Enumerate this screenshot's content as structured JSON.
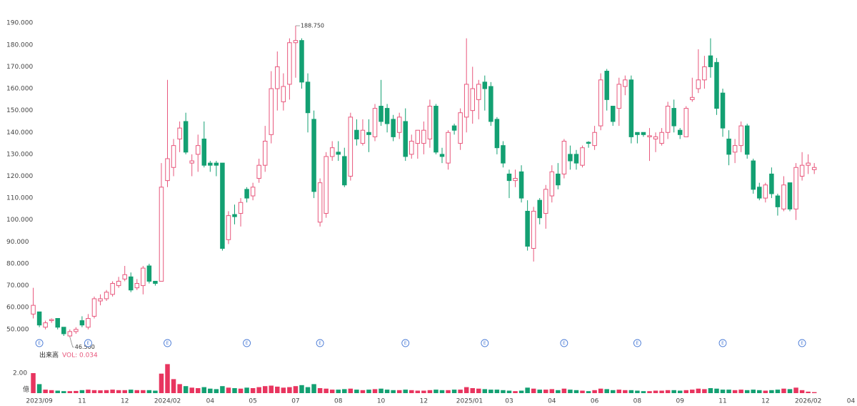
{
  "chart_data": {
    "type": "candlestick",
    "up_color": "#e8577c",
    "down_color": "#13a072",
    "xlim": [
      -1,
      135
    ],
    "xticks": [
      {
        "value": 1,
        "label": "2023/09"
      },
      {
        "value": 8,
        "label": "11"
      },
      {
        "value": 15,
        "label": "12"
      },
      {
        "value": 22,
        "label": "2024/02"
      },
      {
        "value": 29,
        "label": "04"
      },
      {
        "value": 36,
        "label": "05"
      },
      {
        "value": 43,
        "label": "07"
      },
      {
        "value": 50,
        "label": "08"
      },
      {
        "value": 57,
        "label": "10"
      },
      {
        "value": 64,
        "label": "12"
      },
      {
        "value": 71.5,
        "label": "2025/01"
      },
      {
        "value": 78,
        "label": "03"
      },
      {
        "value": 85,
        "label": "04"
      },
      {
        "value": 92,
        "label": "06"
      },
      {
        "value": 99,
        "label": "08"
      },
      {
        "value": 106,
        "label": "09"
      },
      {
        "value": 113,
        "label": "11"
      },
      {
        "value": 120,
        "label": "12"
      },
      {
        "value": 127,
        "label": "2026/02"
      },
      {
        "value": 134,
        "label": "04"
      }
    ],
    "ylim": [
      47,
      193
    ],
    "yticks": [
      {
        "value": 50,
        "label": "50.000"
      },
      {
        "value": 60,
        "label": "60.000"
      },
      {
        "value": 70,
        "label": "70.000"
      },
      {
        "value": 80,
        "label": "80.000"
      },
      {
        "value": 90,
        "label": "90.000"
      },
      {
        "value": 100,
        "label": "100.000"
      },
      {
        "value": 110,
        "label": "110.000"
      },
      {
        "value": 120,
        "label": "120.000"
      },
      {
        "value": 130,
        "label": "130.000"
      },
      {
        "value": 140,
        "label": "140.000"
      },
      {
        "value": 150,
        "label": "150.000"
      },
      {
        "value": 160,
        "label": "160.000"
      },
      {
        "value": 170,
        "label": "170.000"
      },
      {
        "value": 180,
        "label": "180.000"
      },
      {
        "value": 190,
        "label": "190.000"
      }
    ],
    "open": [
      57,
      58,
      51,
      54,
      55,
      51,
      47,
      49,
      54,
      51,
      56,
      63,
      64,
      66,
      70,
      73,
      74,
      69,
      70,
      79,
      72,
      72,
      118,
      124,
      137,
      145,
      126,
      130,
      137,
      126,
      126,
      126,
      91,
      102.5,
      103,
      114,
      111,
      119,
      125,
      139,
      160,
      154,
      162,
      181,
      182,
      163,
      146,
      99,
      103,
      129,
      131,
      129,
      120,
      141,
      135,
      140,
      138,
      152,
      151,
      146,
      140,
      145,
      130,
      135,
      135,
      137,
      152,
      130,
      126,
      143,
      135,
      147,
      150,
      155,
      163,
      161,
      146,
      134,
      121,
      118,
      122,
      104,
      87,
      109,
      103,
      111,
      121,
      121,
      130,
      130,
      125,
      135.5,
      134,
      143,
      168,
      152,
      151,
      161,
      164,
      140,
      140,
      138,
      137,
      135,
      140,
      151,
      141,
      138,
      155,
      160,
      164,
      175,
      172,
      158,
      137,
      131,
      134,
      143,
      127,
      115,
      110,
      121,
      111,
      105,
      117,
      105,
      120,
      125,
      123
    ],
    "high": [
      69,
      58,
      54,
      55,
      55,
      51,
      50,
      51,
      56,
      57,
      65,
      66,
      68,
      72,
      74,
      79,
      76,
      73,
      79,
      80,
      72,
      126,
      164,
      137,
      145,
      149,
      130,
      139,
      145,
      127,
      127,
      126,
      104,
      107,
      110,
      115,
      117,
      128,
      143,
      168,
      177,
      167,
      183,
      188.75,
      183,
      167,
      150,
      119,
      131,
      136,
      136,
      133,
      149,
      146,
      146,
      146,
      153,
      164,
      153,
      148,
      149,
      151,
      139,
      141,
      145,
      155,
      153,
      133,
      141,
      144,
      151,
      183,
      170,
      164,
      166,
      163,
      147,
      136,
      123,
      123,
      125,
      109,
      106,
      110,
      116,
      125,
      126,
      137,
      134,
      132,
      134,
      136,
      143,
      167,
      169,
      152,
      165,
      166,
      166,
      140,
      140,
      142,
      140,
      142,
      154,
      155,
      142,
      152,
      165,
      178,
      175,
      183,
      174,
      160,
      141,
      137,
      145,
      144,
      128,
      117,
      117,
      124,
      112,
      120,
      117,
      126,
      131,
      130,
      126
    ],
    "low": [
      55,
      51,
      50,
      53,
      50,
      47,
      46.5,
      48,
      51,
      50,
      55,
      61,
      63,
      65,
      69,
      72,
      67,
      68,
      66,
      71,
      70,
      72,
      115,
      120,
      131,
      130,
      120,
      122,
      124,
      122,
      120,
      86,
      89,
      98,
      97,
      108,
      109,
      117,
      122,
      135,
      150,
      150,
      155,
      165,
      160,
      140,
      110,
      97,
      101,
      127,
      127,
      115,
      118,
      134,
      134,
      131,
      136,
      143,
      140,
      136,
      137,
      127,
      128,
      128,
      130,
      133,
      130,
      126,
      123,
      139,
      132,
      140,
      144,
      146,
      150,
      143,
      130,
      124,
      110,
      115,
      108,
      86,
      81,
      98,
      96,
      108,
      114,
      119,
      123,
      123,
      124,
      133,
      132,
      141,
      150,
      143,
      143,
      157,
      135,
      135,
      138,
      127,
      131,
      134,
      137,
      140,
      137,
      138,
      154,
      158,
      160,
      165,
      148,
      138,
      125,
      126,
      131,
      128,
      112,
      109,
      108,
      110,
      102,
      104,
      104,
      100,
      118,
      121,
      121
    ],
    "close": [
      61,
      52,
      53,
      54.5,
      51,
      48,
      49,
      50,
      52,
      55,
      64,
      64,
      67,
      71,
      72,
      75,
      68,
      71,
      78,
      72,
      71,
      115,
      128,
      134,
      142,
      131,
      127,
      134,
      125,
      125,
      125,
      87,
      102,
      101.5,
      108,
      110,
      115,
      125,
      136,
      160,
      170,
      161,
      181,
      182,
      163,
      149,
      113,
      117,
      129,
      133,
      130,
      116,
      147,
      137,
      141,
      139,
      151,
      145,
      144,
      138,
      147,
      129,
      136,
      141,
      141,
      152,
      131,
      129,
      140,
      141,
      149,
      162,
      160,
      162,
      160,
      145,
      133,
      126,
      118,
      119,
      110,
      88,
      104,
      101,
      114,
      122,
      116,
      136,
      127,
      126,
      133,
      135,
      140,
      164,
      155,
      145,
      162,
      164,
      138,
      139,
      139,
      138.5,
      138,
      140,
      152,
      143,
      139,
      151,
      156,
      164,
      170,
      170,
      151,
      142,
      130,
      134,
      143,
      130,
      114,
      110,
      116,
      112,
      106,
      116,
      105,
      124,
      125,
      126,
      124
    ],
    "annotations": [
      {
        "x": 43,
        "value": 188.75,
        "label": "188.750"
      },
      {
        "x": 6,
        "value": 46.5,
        "label": "46.500"
      }
    ],
    "events": {
      "x": [
        1,
        9,
        22,
        35,
        47,
        61,
        74,
        87,
        99,
        113,
        126
      ],
      "label": "E"
    },
    "volume": {
      "title": "出来高",
      "label": "VOL: 0.034",
      "unit": "億",
      "ylim": [
        0,
        3
      ],
      "yticks": [
        {
          "value": 2,
          "label": "2.00"
        }
      ],
      "values": [
        2.0,
        0.9,
        0.35,
        0.3,
        0.25,
        0.2,
        0.2,
        0.22,
        0.3,
        0.35,
        0.3,
        0.28,
        0.3,
        0.35,
        0.3,
        0.3,
        0.35,
        0.3,
        0.3,
        0.3,
        0.25,
        1.95,
        2.9,
        1.4,
        0.9,
        0.7,
        0.55,
        0.5,
        0.6,
        0.45,
        0.4,
        0.7,
        0.55,
        0.5,
        0.45,
        0.55,
        0.5,
        0.6,
        0.7,
        0.75,
        0.65,
        0.55,
        0.6,
        0.7,
        0.8,
        0.6,
        0.9,
        0.5,
        0.45,
        0.35,
        0.35,
        0.4,
        0.45,
        0.35,
        0.3,
        0.35,
        0.4,
        0.45,
        0.35,
        0.3,
        0.3,
        0.35,
        0.3,
        0.25,
        0.25,
        0.3,
        0.35,
        0.3,
        0.3,
        0.35,
        0.35,
        0.6,
        0.5,
        0.45,
        0.4,
        0.35,
        0.35,
        0.3,
        0.25,
        0.2,
        0.25,
        0.55,
        0.45,
        0.35,
        0.35,
        0.4,
        0.3,
        0.45,
        0.35,
        0.3,
        0.25,
        0.2,
        0.3,
        0.45,
        0.4,
        0.3,
        0.35,
        0.3,
        0.3,
        0.25,
        0.2,
        0.2,
        0.25,
        0.25,
        0.3,
        0.3,
        0.25,
        0.3,
        0.35,
        0.45,
        0.4,
        0.5,
        0.45,
        0.35,
        0.35,
        0.3,
        0.35,
        0.3,
        0.35,
        0.3,
        0.25,
        0.3,
        0.35,
        0.45,
        0.4,
        0.55,
        0.3,
        0.15,
        0.1
      ]
    }
  }
}
